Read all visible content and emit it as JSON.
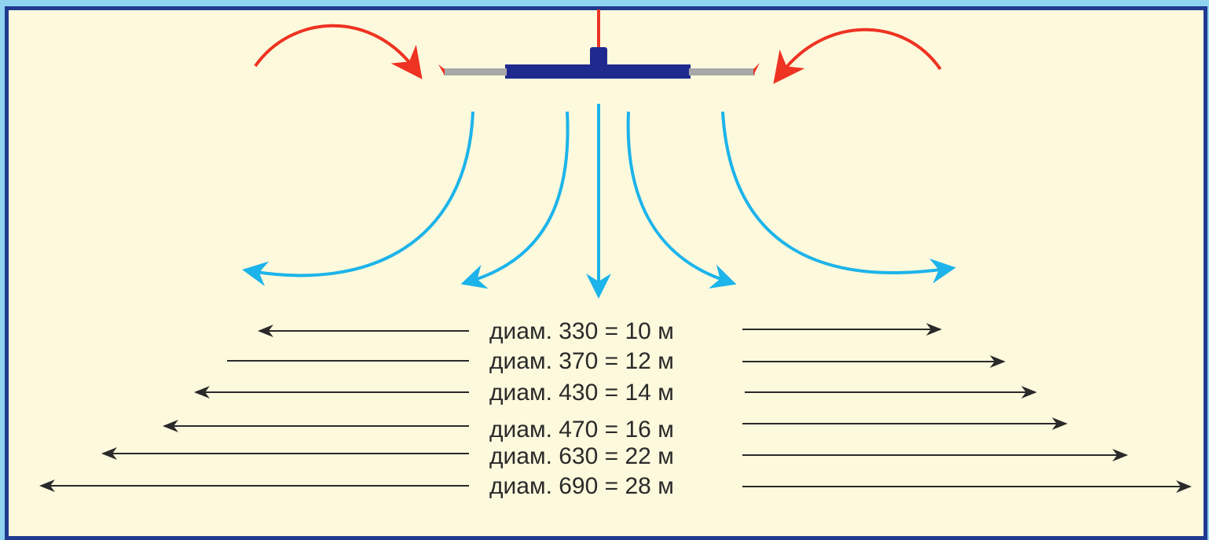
{
  "colors": {
    "background": "#fdf9dd",
    "frame_border": "#1f3a8f",
    "outer": "#8fd3ef",
    "intake_arrows": "#ee3322",
    "airflow_arrows": "#1cb4ea",
    "fan_body": "#1f2a8f",
    "fan_blade_tips": "#a8a8a8",
    "dimension_lines": "#2a2a2a"
  },
  "icons": [
    "ceiling-fan-icon"
  ],
  "rows": [
    {
      "label": "диам. 330 = 10 м"
    },
    {
      "label": "диам. 370 = 12 м"
    },
    {
      "label": "диам. 430 = 14 м"
    },
    {
      "label": "диам. 470 = 16 м"
    },
    {
      "label": "диам. 630 = 22 м"
    },
    {
      "label": "диам. 690 = 28 м"
    }
  ]
}
